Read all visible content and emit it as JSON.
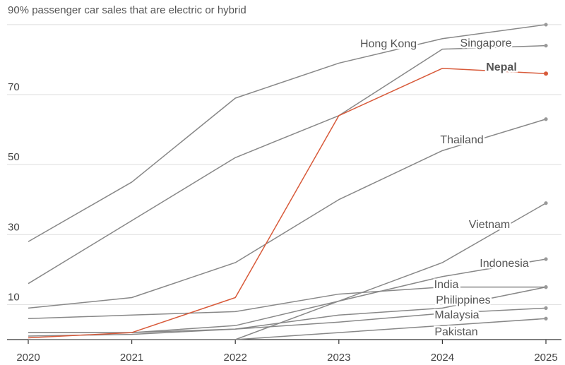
{
  "chart_data": {
    "type": "line",
    "title": "passenger car sales that are electric or hybrid",
    "title_tick": "90%",
    "x": [
      "2020",
      "2021",
      "2022",
      "2023",
      "2024",
      "2025"
    ],
    "ylim": [
      0,
      92
    ],
    "yticks": [
      10,
      30,
      50,
      70
    ],
    "unit": "%",
    "highlight_color": "#d85a3a",
    "base_color": "#888888",
    "series": [
      {
        "name": "Hong Kong",
        "values": [
          28,
          45,
          69,
          79,
          86,
          90
        ]
      },
      {
        "name": "Singapore",
        "values": [
          16,
          34,
          52,
          64,
          83,
          84
        ]
      },
      {
        "name": "Nepal",
        "values": [
          0.5,
          2,
          12,
          64,
          77.5,
          76
        ],
        "highlight": true
      },
      {
        "name": "Thailand",
        "values": [
          9,
          12,
          22,
          40,
          54,
          63
        ]
      },
      {
        "name": "Vietnam",
        "values": [
          0,
          0,
          0,
          11,
          22,
          39
        ]
      },
      {
        "name": "Indonesia",
        "values": [
          2,
          2,
          4,
          11,
          18,
          23
        ]
      },
      {
        "name": "India",
        "values": [
          6,
          7,
          8,
          13,
          15,
          15
        ]
      },
      {
        "name": "Philippines",
        "values": [
          1,
          1.5,
          3,
          7,
          9,
          15
        ]
      },
      {
        "name": "Malaysia",
        "values": [
          2,
          2,
          3,
          5,
          7.5,
          9
        ]
      },
      {
        "name": "Pakistan",
        "values": [
          0,
          0,
          0,
          2,
          4,
          6
        ]
      }
    ]
  }
}
